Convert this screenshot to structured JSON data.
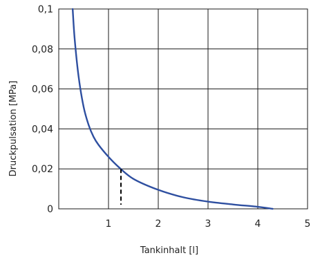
{
  "chart_data": {
    "type": "line",
    "xlabel": "Tankinhalt [l]",
    "ylabel": "Druckpulsation [MPa]",
    "xlim": [
      0,
      5
    ],
    "ylim": [
      0,
      0.1
    ],
    "x_ticks": [
      "1",
      "2",
      "3",
      "4",
      "5"
    ],
    "y_ticks": [
      "0",
      "0,02",
      "0,04",
      "0,06",
      "0,08",
      "0,1"
    ],
    "grid": true,
    "series": [
      {
        "color": "#2e4fa0",
        "x": [
          0.28,
          0.32,
          0.4,
          0.5,
          0.6,
          0.7,
          0.8,
          1.0,
          1.2,
          1.5,
          2.0,
          2.5,
          3.0,
          3.5,
          4.0,
          4.3
        ],
        "y": [
          0.1,
          0.085,
          0.066,
          0.051,
          0.042,
          0.036,
          0.032,
          0.026,
          0.021,
          0.015,
          0.0095,
          0.0058,
          0.0036,
          0.0022,
          0.001,
          0.0
        ]
      }
    ],
    "marker": {
      "x": 1.25,
      "y": 0.02
    }
  }
}
